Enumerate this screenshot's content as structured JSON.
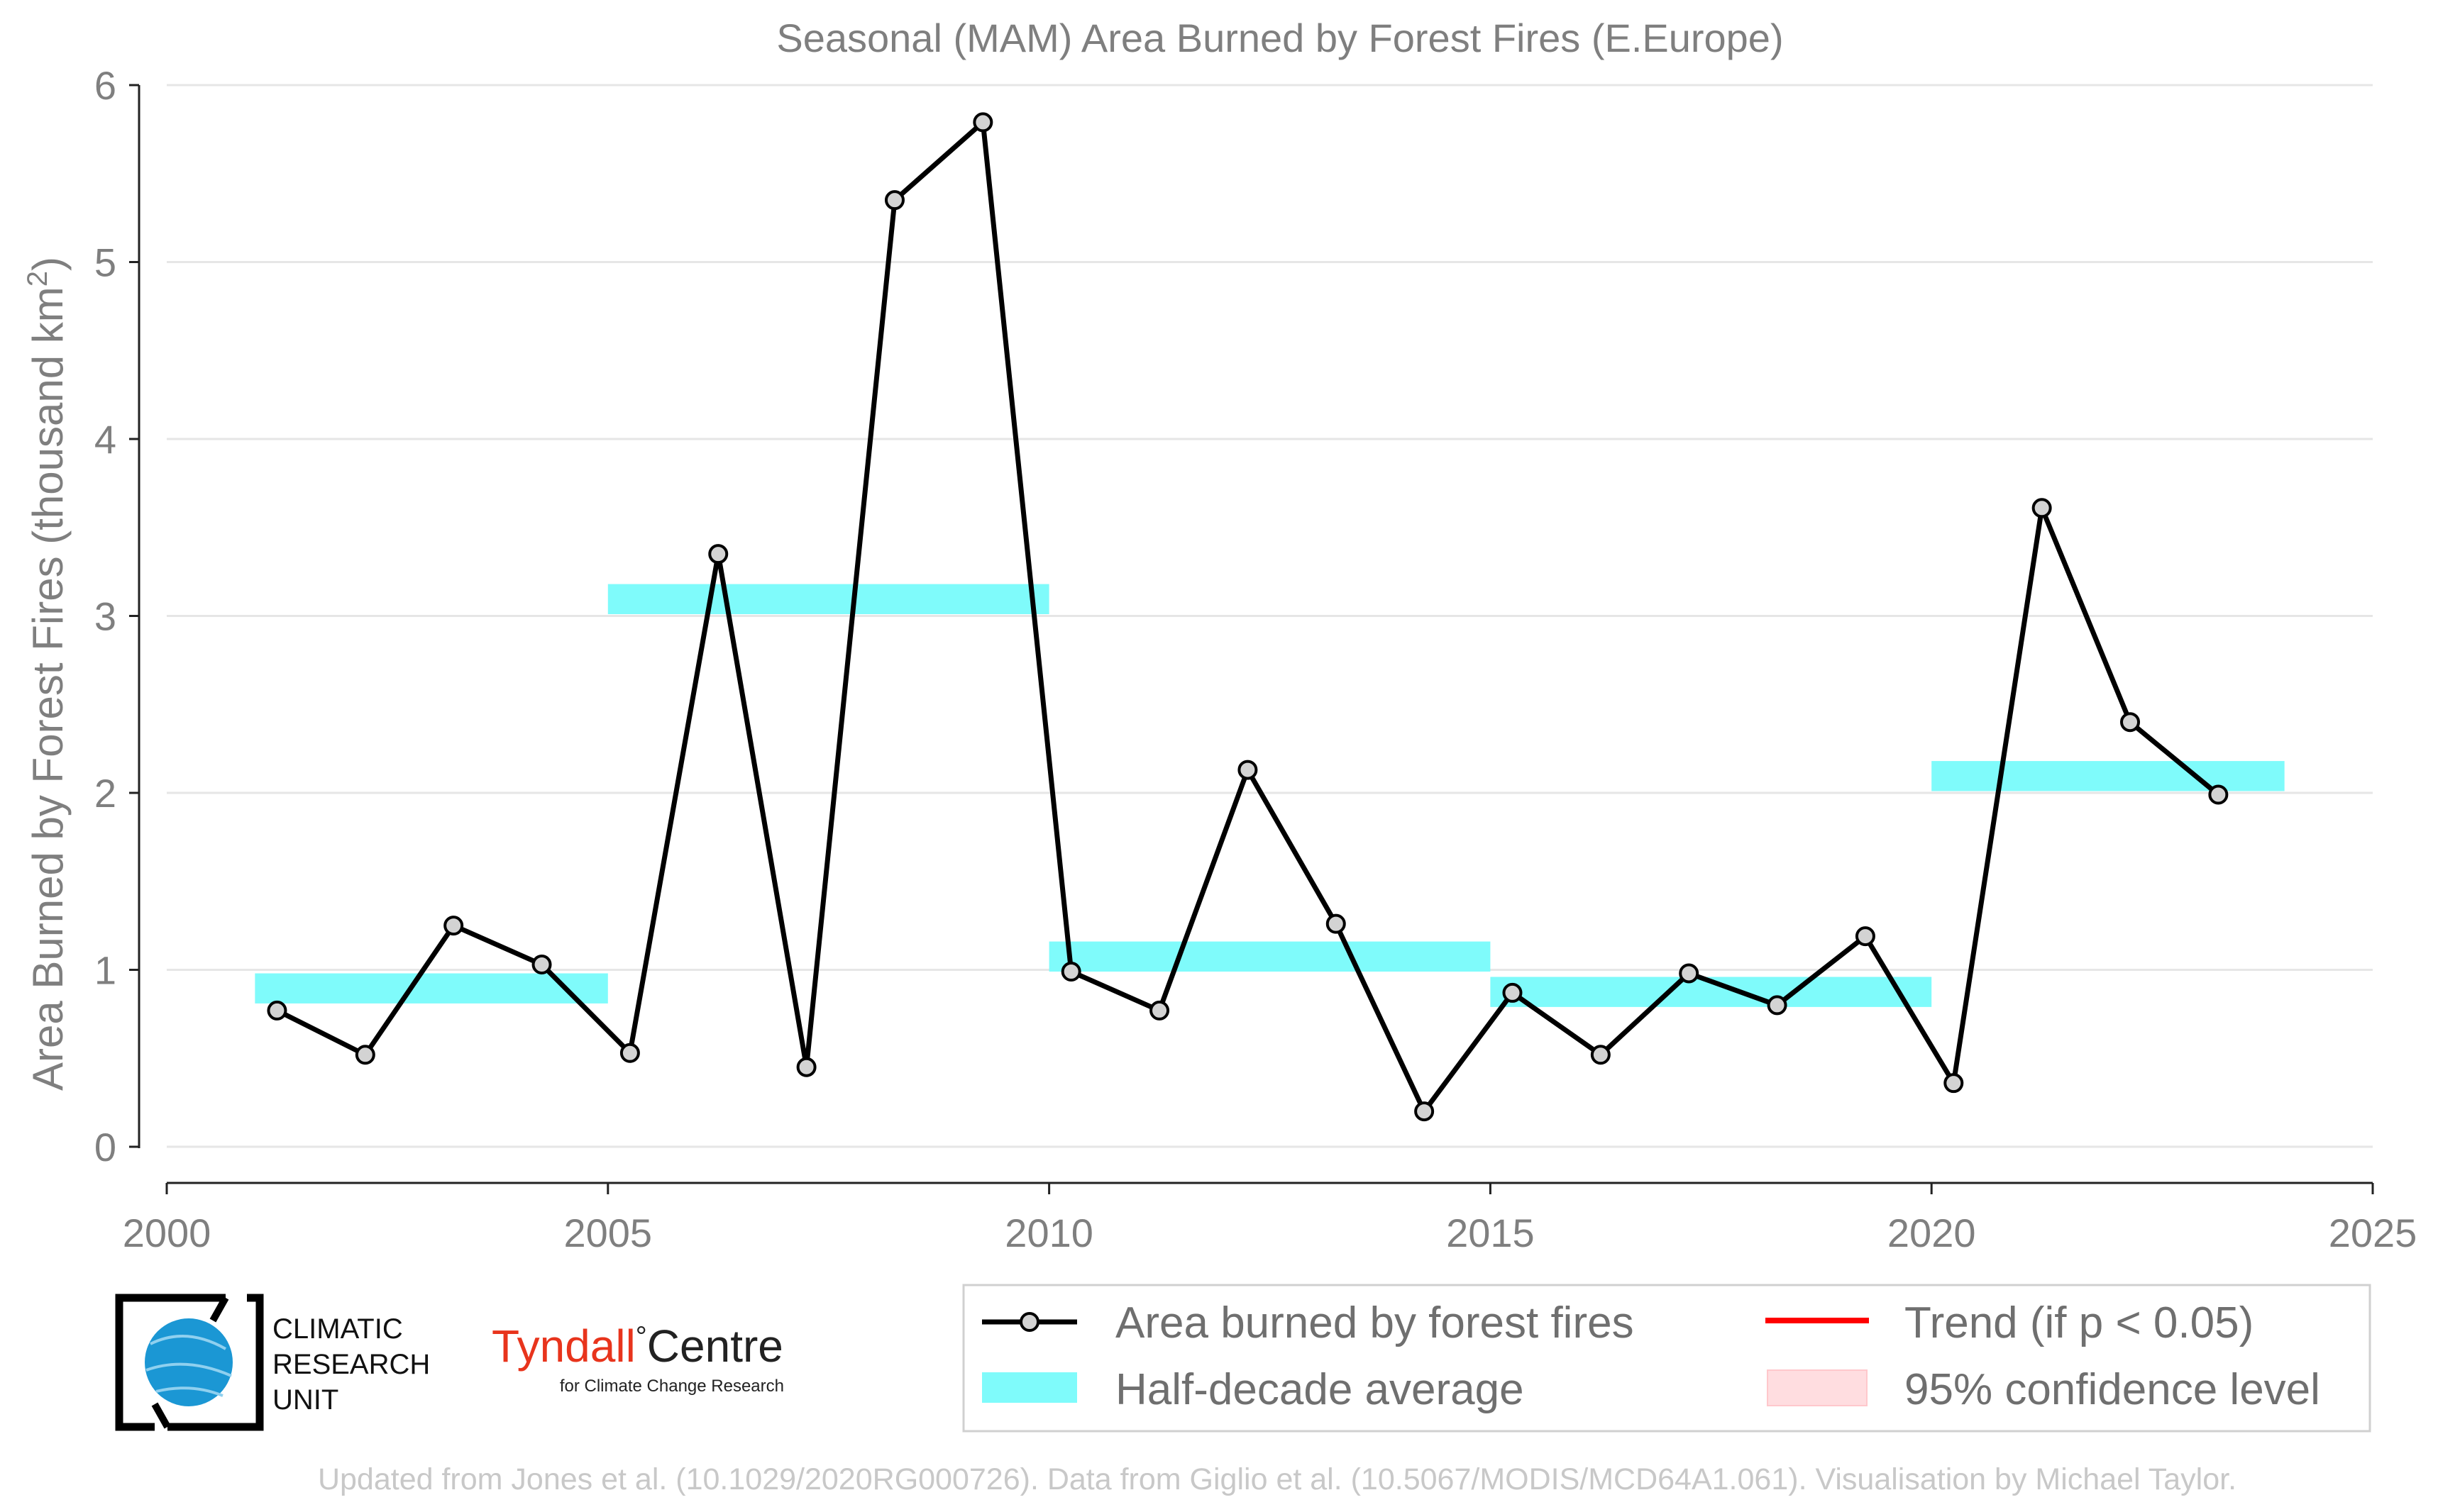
{
  "chart_data": {
    "type": "line",
    "title": "Seasonal (MAM) Area Burned by Forest Fires (E.Europe)",
    "ylabel_main": "Area Burned by Forest Fires (thousand km",
    "ylabel_sup": "2",
    "ylabel_close": ")",
    "xlim": [
      2000,
      2025
    ],
    "ylim": [
      0,
      6
    ],
    "xticks": [
      "2000",
      "2005",
      "2010",
      "2015",
      "2020",
      "2025"
    ],
    "yticks": [
      "0",
      "1",
      "2",
      "3",
      "4",
      "5",
      "6"
    ],
    "grid": true,
    "series": [
      {
        "name": "Area burned by forest fires",
        "x": [
          2001.25,
          2002.25,
          2003.25,
          2004.25,
          2005.25,
          2006.25,
          2007.25,
          2008.25,
          2009.25,
          2010.25,
          2011.25,
          2012.25,
          2013.25,
          2014.25,
          2015.25,
          2016.25,
          2017.25,
          2018.25,
          2019.25,
          2020.25,
          2021.25,
          2022.25,
          2023.25
        ],
        "values": [
          0.77,
          0.52,
          1.25,
          1.03,
          0.53,
          3.35,
          0.45,
          5.35,
          5.79,
          0.99,
          0.77,
          2.13,
          1.26,
          0.2,
          0.87,
          0.52,
          0.98,
          0.8,
          1.19,
          0.36,
          3.61,
          2.4,
          1.99
        ],
        "color": "#000000"
      }
    ],
    "half_decade_average": {
      "name": "Half-decade average",
      "color": "#7ffbfb",
      "segments": [
        {
          "x0": 2001,
          "x1": 2005,
          "y0": 0.81,
          "y1": 0.98
        },
        {
          "x0": 2005,
          "x1": 2010,
          "y0": 3.01,
          "y1": 3.18
        },
        {
          "x0": 2010,
          "x1": 2015,
          "y0": 0.99,
          "y1": 1.16
        },
        {
          "x0": 2015,
          "x1": 2020,
          "y0": 0.79,
          "y1": 0.96
        },
        {
          "x0": 2020,
          "x1": 2024,
          "y0": 2.01,
          "y1": 2.18
        }
      ]
    },
    "legend": {
      "position": "bottom-right",
      "entries": [
        {
          "label": "Area burned by forest fires",
          "kind": "line-marker",
          "color": "#000000"
        },
        {
          "label": "Trend (if p < 0.05)",
          "kind": "line",
          "color": "#ff0000"
        },
        {
          "label": "Half-decade average",
          "kind": "band",
          "color": "#7ffbfb"
        },
        {
          "label": "95% confidence level",
          "kind": "band",
          "color": "#ffdde0"
        }
      ]
    }
  },
  "logos": {
    "cru": {
      "line1": "CLIMATIC",
      "line2": "RESEARCH",
      "line3": "UNIT"
    },
    "tyndall": {
      "name": "Tyndall",
      "degree": "°",
      "centre": "Centre",
      "tagline": "for Climate Change Research",
      "color": "#e8341c"
    }
  },
  "footer": "Updated from Jones et al. (10.1029/2020RG000726). Data from Giglio et al. (10.5067/MODIS/MCD64A1.061). Visualisation by Michael Taylor."
}
